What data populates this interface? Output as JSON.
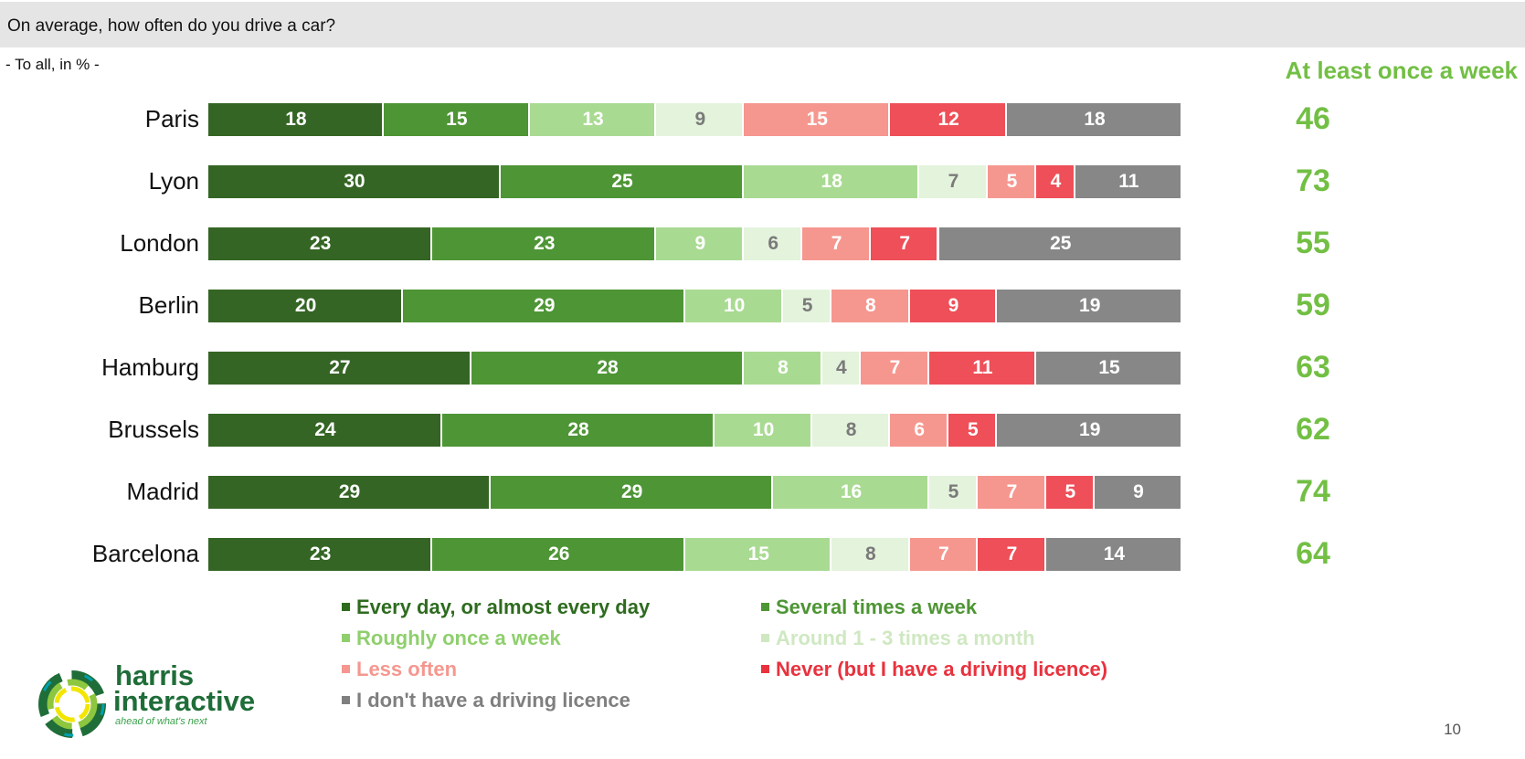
{
  "header": {
    "question": "On average, how often do you drive a car?",
    "subtitle": "- To all, in % -",
    "summary_header": "At least once a week"
  },
  "chart_data": {
    "type": "bar",
    "stacked": true,
    "orientation": "horizontal",
    "xlim": [
      0,
      100
    ],
    "categories": [
      "Paris",
      "Lyon",
      "London",
      "Berlin",
      "Hamburg",
      "Brussels",
      "Madrid",
      "Barcelona"
    ],
    "series": [
      {
        "name": "Every day, or almost every day",
        "color": "#346524",
        "label_color": "#ffffff",
        "values": [
          18,
          30,
          23,
          20,
          27,
          24,
          29,
          23
        ]
      },
      {
        "name": "Several times a week",
        "color": "#4e9535",
        "label_color": "#ffffff",
        "values": [
          15,
          25,
          23,
          29,
          28,
          28,
          29,
          26
        ]
      },
      {
        "name": "Roughly once a week",
        "color": "#a9da92",
        "label_color": "#ffffff",
        "values": [
          13,
          18,
          9,
          10,
          8,
          10,
          16,
          15
        ]
      },
      {
        "name": "Around 1 - 3 times a month",
        "color": "#e4f3dc",
        "label_color": "#7a7a7a",
        "values": [
          9,
          7,
          6,
          5,
          4,
          8,
          5,
          8
        ]
      },
      {
        "name": "Less often",
        "color": "#f5978f",
        "label_color": "#ffffff",
        "values": [
          15,
          5,
          7,
          8,
          7,
          6,
          7,
          7
        ]
      },
      {
        "name": "Never (but I have a driving licence)",
        "color": "#ee4f58",
        "label_color": "#ffffff",
        "values": [
          12,
          4,
          7,
          9,
          11,
          5,
          5,
          7
        ]
      },
      {
        "name": "I don't have a driving licence",
        "color": "#878787",
        "label_color": "#ffffff",
        "values": [
          18,
          11,
          25,
          19,
          15,
          19,
          9,
          14
        ]
      }
    ],
    "at_least_once_a_week": [
      46,
      73,
      55,
      59,
      63,
      62,
      74,
      64
    ],
    "legend": [
      {
        "label": "Every day, or almost every day",
        "color": "#2e6b1f"
      },
      {
        "label": "Several times a week",
        "color": "#4e9535"
      },
      {
        "label": "Roughly once a week",
        "color": "#8fcf6d"
      },
      {
        "label": "Around 1 - 3 times a month",
        "color": "#cfe8c2"
      },
      {
        "label": "Less often",
        "color": "#f5978f"
      },
      {
        "label": "Never (but I have a driving licence)",
        "color": "#e8323e"
      },
      {
        "label": "I don't have a driving licence",
        "color": "#7f7f7f"
      }
    ]
  },
  "logo": {
    "line1": "harris",
    "line2": "interactive",
    "tagline": "ahead of what's next"
  },
  "page_number": "10"
}
